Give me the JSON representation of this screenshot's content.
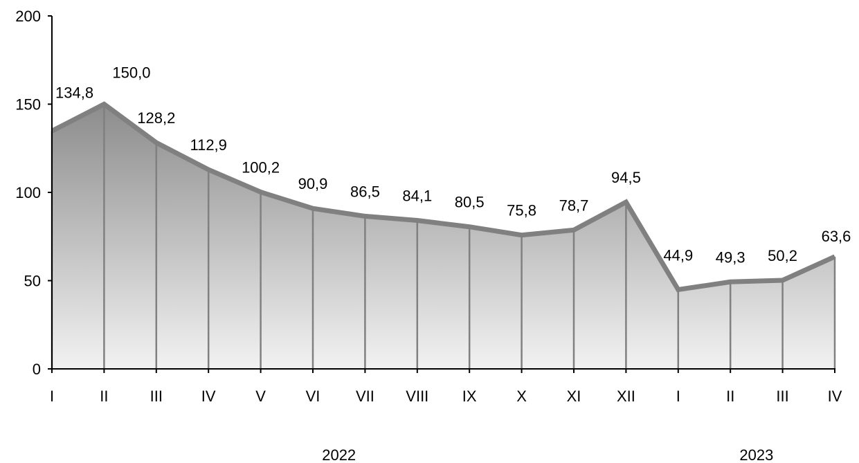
{
  "chart_data": {
    "type": "area",
    "categories": [
      "I",
      "II",
      "III",
      "IV",
      "V",
      "VI",
      "VII",
      "VIII",
      "IX",
      "X",
      "XI",
      "XII",
      "I",
      "II",
      "III",
      "IV"
    ],
    "values": [
      134.8,
      150.0,
      128.2,
      112.9,
      100.2,
      90.9,
      86.5,
      84.1,
      80.5,
      75.8,
      78.7,
      94.5,
      44.9,
      49.3,
      50.2,
      63.6
    ],
    "data_labels": [
      "134,8",
      "150,0",
      "128,2",
      "112,9",
      "100,2",
      "90,9",
      "86,5",
      "84,1",
      "80,5",
      "75,8",
      "78,7",
      "94,5",
      "44,9",
      "49,3",
      "50,2",
      "63,6"
    ],
    "year_groups": [
      {
        "label": "2022",
        "start": 0,
        "end": 11
      },
      {
        "label": "2023",
        "start": 12,
        "end": 15
      }
    ],
    "y_ticks": [
      0,
      50,
      100,
      150,
      200
    ],
    "ylim": [
      0,
      200
    ],
    "grid": false,
    "colors": {
      "line": "#808080",
      "drop_lines": "#808080",
      "fill_top": "#8c8c8c",
      "fill_bottom": "#f2f2f2",
      "axis": "#000000"
    }
  }
}
